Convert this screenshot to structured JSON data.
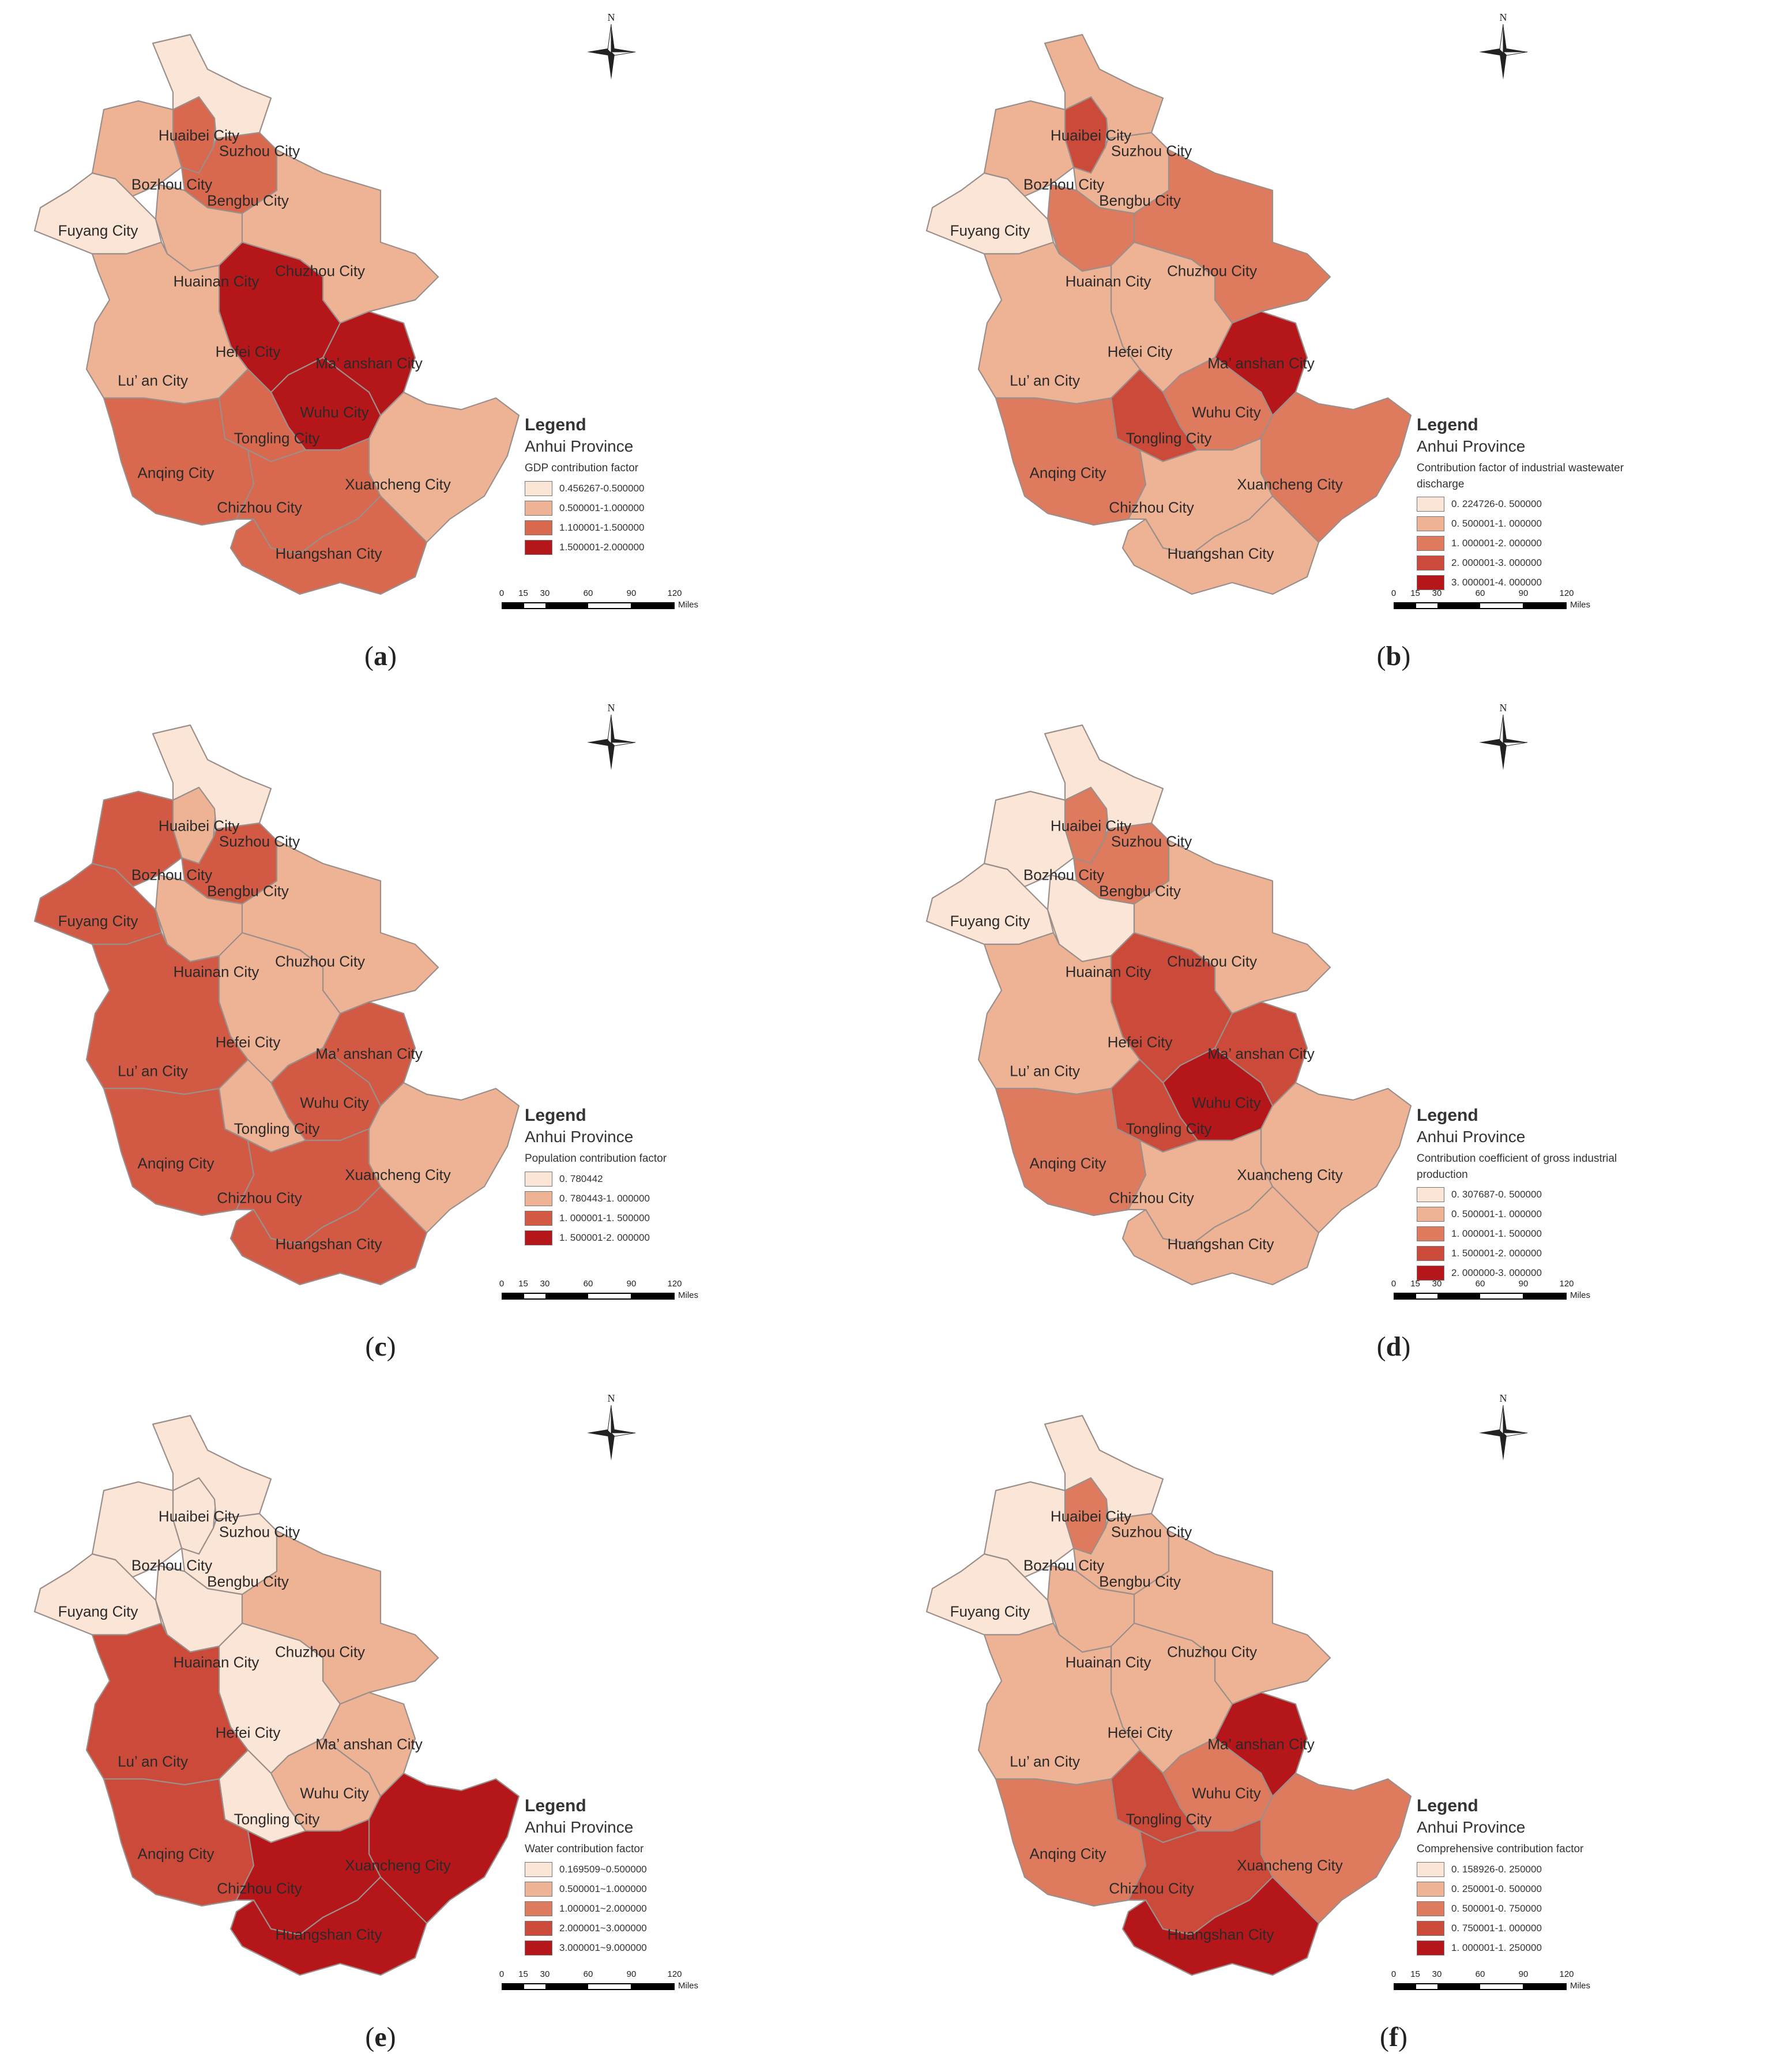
{
  "cities": [
    "Huaibei City",
    "Suzhou City",
    "Bozhou City",
    "Bengbu City",
    "Fuyang City",
    "Huainan City",
    "Chuzhou City",
    "Hefei City",
    "Ma’ anshan City",
    "Lu’ an City",
    "Wuhu City",
    "Tongling City",
    "Anqing City",
    "Xuancheng City",
    "Chizhou City",
    "Huangshan City"
  ],
  "compass_label": "N",
  "scale": {
    "ticks": [
      "0",
      "15",
      "30",
      "60",
      "90",
      "120"
    ],
    "unit": "Miles"
  },
  "legend_title": "Legend",
  "province": "Anhui Province",
  "colors": {
    "c1": "#fae5d6",
    "c2": "#eeb395",
    "c3": "#de7a5e",
    "c4": "#cc4a3a",
    "c5": "#b5161a"
  },
  "panels": [
    {
      "caption": "a",
      "variable": "GDP contribution factor",
      "classes": [
        {
          "range": "0.456267-0.500000",
          "color": "#fae5d6"
        },
        {
          "range": "0.500001-1.000000",
          "color": "#eeb395"
        },
        {
          "range": "1.100001-1.500000",
          "color": "#d8684e"
        },
        {
          "range": "1.500001-2.000000",
          "color": "#b5161a"
        }
      ],
      "city_class": [
        2,
        0,
        1,
        2,
        0,
        1,
        1,
        3,
        3,
        1,
        3,
        2,
        2,
        1,
        2,
        2
      ]
    },
    {
      "caption": "b",
      "variable": "Contribution factor of industrial wastewater discharge",
      "classes": [
        {
          "range": "0. 224726-0. 500000",
          "color": "#fae5d6"
        },
        {
          "range": "0. 500001-1. 000000",
          "color": "#eeb395"
        },
        {
          "range": "1. 000001-2. 000000",
          "color": "#de7a5e"
        },
        {
          "range": "2. 000001-3. 000000",
          "color": "#cc4a3a"
        },
        {
          "range": "3. 000001-4. 000000",
          "color": "#b5161a"
        }
      ],
      "city_class": [
        3,
        1,
        1,
        1,
        0,
        2,
        2,
        1,
        4,
        1,
        2,
        3,
        2,
        2,
        1,
        1
      ]
    },
    {
      "caption": "c",
      "variable": "Population contribution factor",
      "classes": [
        {
          "range": "0. 780442",
          "color": "#fae5d6"
        },
        {
          "range": "0. 780443-1. 000000",
          "color": "#eeb395"
        },
        {
          "range": "1. 000001-1. 500000",
          "color": "#d25a45"
        },
        {
          "range": "1. 500001-2. 000000",
          "color": "#b5161a"
        }
      ],
      "city_class": [
        1,
        0,
        2,
        2,
        2,
        1,
        1,
        1,
        2,
        2,
        2,
        1,
        2,
        1,
        2,
        2
      ]
    },
    {
      "caption": "d",
      "variable": "Contribution coefficient of gross industrial production",
      "classes": [
        {
          "range": "0. 307687-0. 500000",
          "color": "#fae5d6"
        },
        {
          "range": "0. 500001-1. 000000",
          "color": "#eeb395"
        },
        {
          "range": "1. 000001-1. 500000",
          "color": "#de7a5e"
        },
        {
          "range": "1. 500001-2. 000000",
          "color": "#cc4a3a"
        },
        {
          "range": "2. 000000-3. 000000",
          "color": "#b5161a"
        }
      ],
      "city_class": [
        2,
        0,
        0,
        2,
        0,
        0,
        1,
        3,
        3,
        1,
        4,
        3,
        2,
        1,
        1,
        1
      ]
    },
    {
      "caption": "e",
      "variable": "Water contribution factor",
      "classes": [
        {
          "range": "0.169509~0.500000",
          "color": "#fae5d6"
        },
        {
          "range": "0.500001~1.000000",
          "color": "#eeb395"
        },
        {
          "range": "1.000001~2.000000",
          "color": "#de7a5e"
        },
        {
          "range": "2.000001~3.000000",
          "color": "#cc4a3a"
        },
        {
          "range": "3.000001~9.000000",
          "color": "#b5161a"
        }
      ],
      "city_class": [
        0,
        0,
        0,
        0,
        0,
        0,
        1,
        0,
        1,
        3,
        1,
        0,
        3,
        4,
        4,
        4
      ]
    },
    {
      "caption": "f",
      "variable": "Comprehensive contribution factor",
      "classes": [
        {
          "range": "0. 158926-0. 250000",
          "color": "#fae5d6"
        },
        {
          "range": "0. 250001-0. 500000",
          "color": "#eeb395"
        },
        {
          "range": "0. 500001-0. 750000",
          "color": "#de7a5e"
        },
        {
          "range": "0. 750001-1. 000000",
          "color": "#cc4a3a"
        },
        {
          "range": "1. 000001-1. 250000",
          "color": "#b5161a"
        }
      ],
      "city_class": [
        2,
        0,
        0,
        1,
        0,
        1,
        1,
        1,
        4,
        1,
        2,
        3,
        2,
        2,
        3,
        4
      ]
    }
  ]
}
